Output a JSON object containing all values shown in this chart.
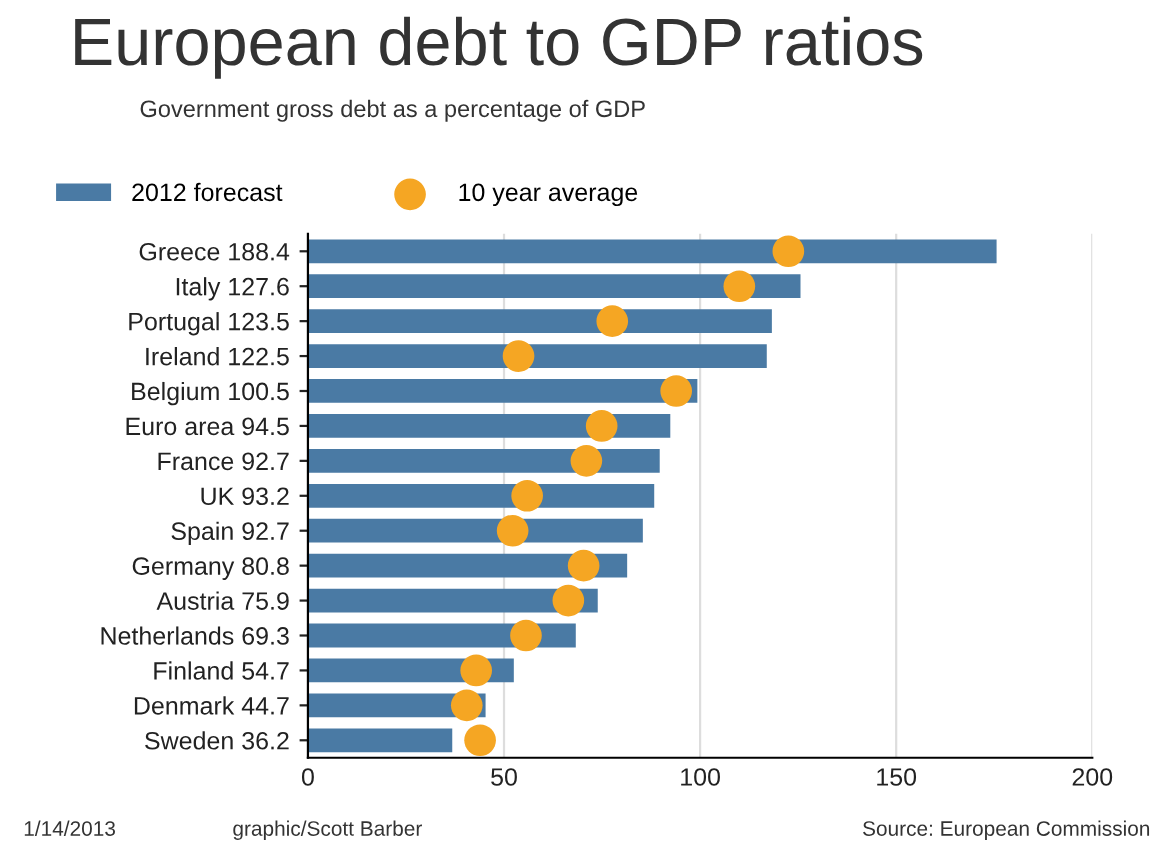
{
  "chart_data": {
    "type": "bar",
    "orientation": "horizontal",
    "title": "European debt to GDP ratios",
    "subtitle": "Government gross debt as a percentage of GDP",
    "categories": [
      "Greece 188.4",
      "Italy 127.6",
      "Portugal 123.5",
      "Ireland 122.5",
      "Belgium 100.5",
      "Euro area 94.5",
      "France 92.7",
      "UK 93.2",
      "Spain 92.7",
      "Germany 80.8",
      "Austria 75.9",
      "Netherlands 69.3",
      "Finland 54.7",
      "Denmark 44.7",
      "Sweden 36.2"
    ],
    "series": [
      {
        "name": "2012 forecast",
        "color": "#4a7aa4",
        "values": [
          175.6,
          125.6,
          118.3,
          117,
          99.3,
          92.4,
          89.7,
          88.3,
          85.4,
          81.4,
          73.9,
          68.3,
          52.5,
          45.3,
          36.8
        ]
      },
      {
        "name": "10 year average",
        "type": "scatter",
        "color": "#f5a623",
        "marker": "circle",
        "values": [
          122.5,
          110,
          77.6,
          53.7,
          93.9,
          74.9,
          71,
          55.9,
          52.2,
          70.3,
          66.4,
          55.6,
          42.9,
          40.5,
          43.9
        ]
      }
    ],
    "xlim": [
      0,
      200
    ],
    "xticks": [
      0,
      50,
      100,
      150,
      200
    ],
    "grid": "x",
    "legend": "top",
    "annotations": [
      "1/14/2013",
      "graphic/Scott Barber",
      "Source: European Commission"
    ]
  }
}
